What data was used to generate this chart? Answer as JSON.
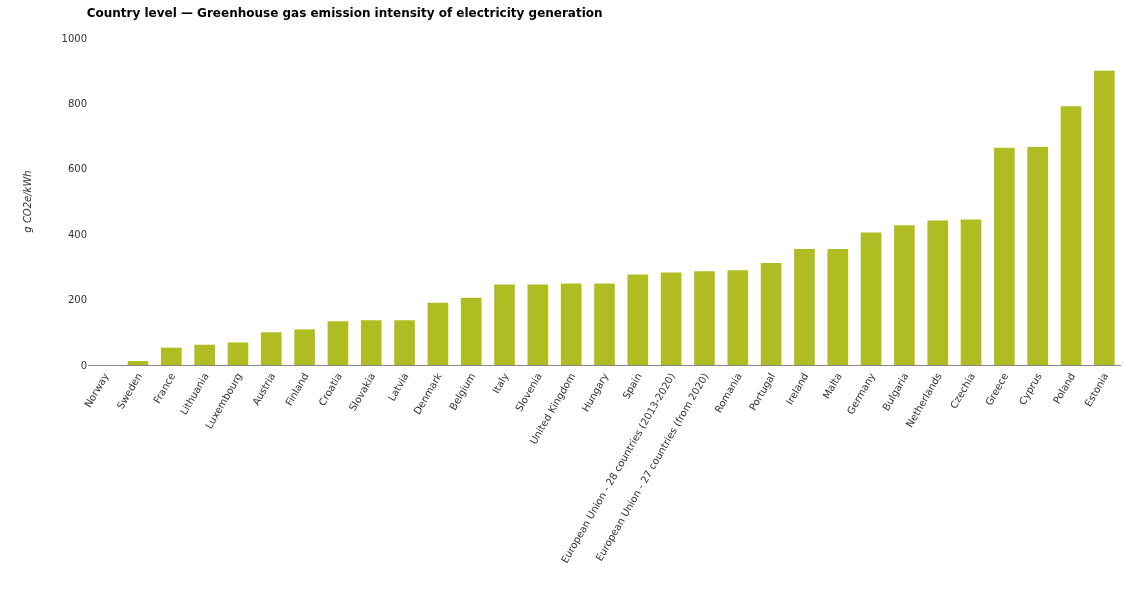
{
  "chart_data": {
    "type": "bar",
    "title": "Country level — Greenhouse gas emission intensity of electricity generation",
    "ylabel": "g CO2e/kWh",
    "categories": [
      "Norway",
      "Sweden",
      "France",
      "Lithuania",
      "Luxembourg",
      "Austria",
      "Finland",
      "Croatia",
      "Slovakia",
      "Latvia",
      "Denmark",
      "Belgium",
      "Italy",
      "Slovenia",
      "United Kingdom",
      "Hungary",
      "Spain",
      "European Union - 28 countries (2013-2020)",
      "European Union - 27 countries (from 2020)",
      "Romania",
      "Portugal",
      "Ireland",
      "Malta",
      "Germany",
      "Bulgaria",
      "Netherlands",
      "Czechia",
      "Greece",
      "Cyprus",
      "Poland",
      "Estonia"
    ],
    "values": [
      0,
      12,
      53,
      62,
      69,
      100,
      109,
      134,
      137,
      137,
      190,
      206,
      246,
      246,
      249,
      249,
      277,
      283,
      287,
      290,
      312,
      355,
      355,
      405,
      427,
      442,
      445,
      664,
      667,
      791,
      900
    ],
    "color": "#afbd22",
    "ylim": [
      0,
      1000
    ],
    "yticks": [
      0,
      200,
      400,
      600,
      800,
      1000
    ],
    "grid": false,
    "legend": false
  }
}
